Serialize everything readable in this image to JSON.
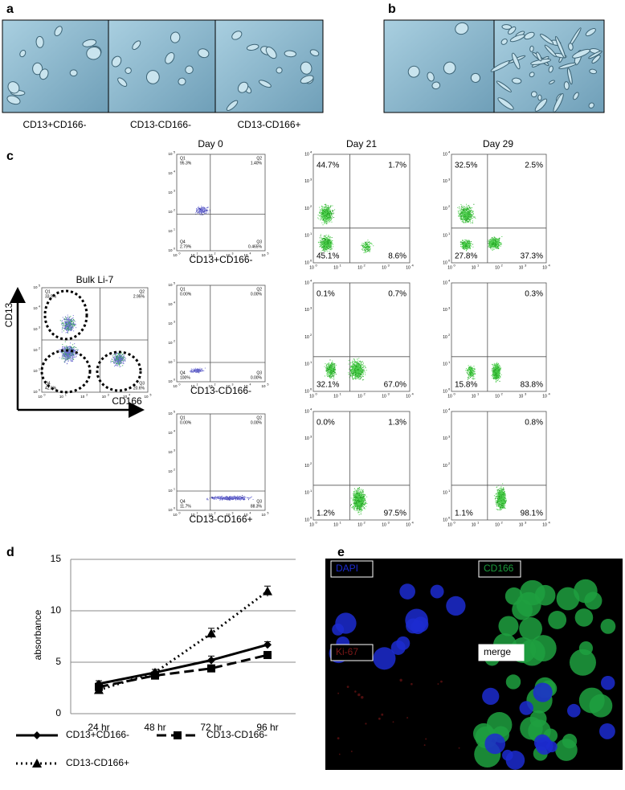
{
  "panels": {
    "a": {
      "label": "a",
      "captions": [
        "CD13+CD166-",
        "CD13-CD166-",
        "CD13-CD166+"
      ]
    },
    "b": {
      "label": "b"
    },
    "c": {
      "label": "c",
      "columns": [
        "Day 0",
        "Day 21",
        "Day 29"
      ],
      "quadrant_names": [
        "Q1",
        "Q2",
        "Q3",
        "Q4"
      ],
      "tick_base": "10",
      "tick_exponents": [
        "0",
        "1",
        "2",
        "3",
        "4",
        "5"
      ],
      "bulk": {
        "title": "Bulk Li-7",
        "y_label": "CD13",
        "x_label": "CD166",
        "tl": "33.5%",
        "tr": "2.95%",
        "bl": "42.9%",
        "br": "20.6%"
      },
      "row_captions": [
        "CD13+CD166-",
        "CD13-CD166-",
        "CD13-CD166+"
      ],
      "plots": [
        [
          {
            "tl": "95.3%",
            "tr": "1.40%",
            "bl": "2.79%",
            "br": "0.465%"
          },
          {
            "tl": "44.7%",
            "tr": "1.7%",
            "bl": "45.1%",
            "br": "8.6%"
          },
          {
            "tl": "32.5%",
            "tr": "2.5%",
            "bl": "27.8%",
            "br": "37.3%"
          }
        ],
        [
          {
            "tl": "0.00%",
            "tr": "0.00%",
            "bl": "100%",
            "br": "0.00%"
          },
          {
            "tl": "0.1%",
            "tr": "0.7%",
            "bl": "32.1%",
            "br": "67.0%"
          },
          {
            "tr": "0.3%",
            "bl": "15.8%",
            "br": "83.8%"
          }
        ],
        [
          {
            "tl": "0.00%",
            "tr": "0.00%",
            "bl": "11.7%",
            "br": "88.3%"
          },
          {
            "tl": "0.0%",
            "tr": "1.3%",
            "bl": "1.2%",
            "br": "97.5%"
          },
          {
            "tr": "0.8%",
            "bl": "1.1%",
            "br": "98.1%"
          }
        ]
      ]
    },
    "d": {
      "label": "d"
    },
    "e": {
      "label": "e",
      "labels": [
        "DAPI",
        "CD166",
        "Ki-67",
        "merge"
      ]
    }
  },
  "chart_data": {
    "type": "line",
    "ylabel": "absorbance",
    "categories": [
      "24 hr",
      "48 hr",
      "72 hr",
      "96 hr"
    ],
    "ylim": [
      0,
      15
    ],
    "yticks": [
      0,
      5,
      10,
      15
    ],
    "grid": true,
    "series": [
      {
        "name": "CD13+CD166-",
        "color": "#000000",
        "linestyle": "solid",
        "marker": "diamond",
        "values": [
          2.9,
          4.0,
          5.2,
          6.7
        ],
        "errors": [
          0.3,
          0.3,
          0.4,
          0.3
        ]
      },
      {
        "name": "CD13-CD166-",
        "color": "#000000",
        "linestyle": "dashed",
        "marker": "square",
        "values": [
          2.6,
          3.7,
          4.4,
          5.7
        ],
        "errors": [
          0.3,
          0.3,
          0.3,
          0.3
        ]
      },
      {
        "name": "CD13-CD166+",
        "color": "#000000",
        "linestyle": "dotted",
        "marker": "triangle",
        "values": [
          2.3,
          4.0,
          7.8,
          11.9
        ],
        "errors": [
          0.3,
          0.3,
          0.5,
          0.5
        ]
      }
    ]
  }
}
